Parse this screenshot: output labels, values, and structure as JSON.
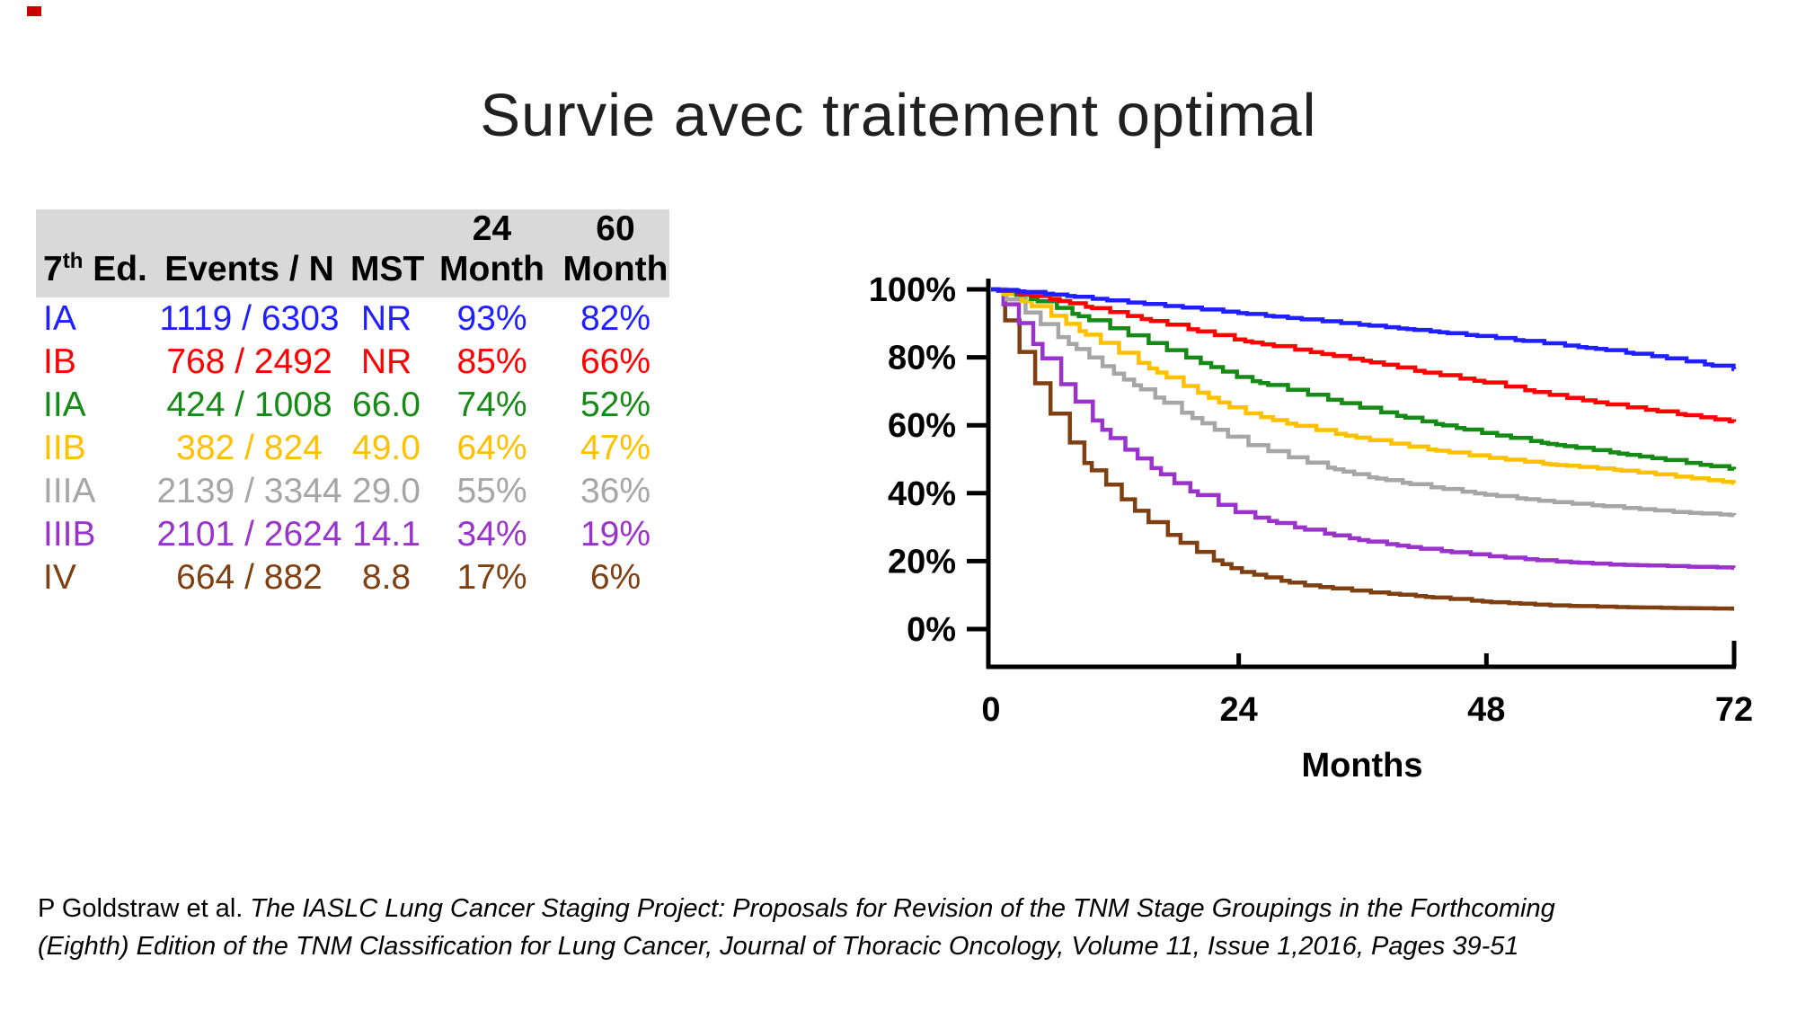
{
  "slide": {
    "title": "Survie avec traitement optimal"
  },
  "table": {
    "header_bg": "#d9d9d9",
    "header": {
      "col1": {
        "pre": "7",
        "sup": "th",
        "post": " Ed."
      },
      "col2": "Events / N",
      "col3": "MST",
      "col4_top": "24",
      "col4_bottom": "Month",
      "col5_top": "60",
      "col5_bottom": "Month"
    },
    "rows": [
      {
        "stage": "IA",
        "events_n": "1119 / 6303",
        "mst": "NR",
        "m24": "93%",
        "m60": "82%",
        "color": "#1f1fff"
      },
      {
        "stage": "IB",
        "events_n": "768 / 2492",
        "mst": "NR",
        "m24": "85%",
        "m60": "66%",
        "color": "#ff0000"
      },
      {
        "stage": "IIA",
        "events_n": "424 / 1008",
        "mst": "66.0",
        "m24": "74%",
        "m60": "52%",
        "color": "#168a16"
      },
      {
        "stage": "IIB",
        "events_n": "382 / 824",
        "mst": "49.0",
        "m24": "64%",
        "m60": "47%",
        "color": "#ffc000"
      },
      {
        "stage": "IIIA",
        "events_n": "2139 / 3344",
        "mst": "29.0",
        "m24": "55%",
        "m60": "36%",
        "color": "#a6a6a6"
      },
      {
        "stage": "IIIB",
        "events_n": "2101 / 2624",
        "mst": "14.1",
        "m24": "34%",
        "m60": "19%",
        "color": "#9933cc"
      },
      {
        "stage": "IV",
        "events_n": "664 / 882",
        "mst": "8.8",
        "m24": "17%",
        "m60": "6%",
        "color": "#7f3f10"
      }
    ]
  },
  "chart_data": {
    "type": "line",
    "subtype": "kaplan-meier-step-curves",
    "title": "",
    "xlabel": "Months",
    "ylabel": "",
    "xlim": [
      0,
      72
    ],
    "ylim": [
      0,
      100
    ],
    "x_ticks": [
      0,
      24,
      48,
      72
    ],
    "y_tick_labels": [
      "100%",
      "80%",
      "60%",
      "40%",
      "20%",
      "0%"
    ],
    "grid": false,
    "legend_position": "none (series colors match table row colors)",
    "series": [
      {
        "name": "IA",
        "color": "#1f1fff",
        "x": [
          0,
          3,
          6,
          12,
          18,
          24,
          30,
          36,
          42,
          48,
          54,
          60,
          66,
          72
        ],
        "y": [
          100,
          99.3,
          98.5,
          96.5,
          94.8,
          93,
          91.2,
          89.5,
          87.8,
          86,
          84,
          82,
          79.5,
          76.5
        ]
      },
      {
        "name": "IB",
        "color": "#ff0000",
        "x": [
          0,
          3,
          6,
          12,
          18,
          24,
          30,
          36,
          42,
          48,
          54,
          60,
          66,
          72
        ],
        "y": [
          100,
          98.5,
          97,
          93,
          89,
          85,
          82,
          79,
          75.5,
          72.5,
          69,
          66,
          63.5,
          61
        ]
      },
      {
        "name": "IIA",
        "color": "#168a16",
        "x": [
          0,
          3,
          6,
          12,
          18,
          24,
          30,
          36,
          42,
          48,
          54,
          60,
          66,
          72
        ],
        "y": [
          100,
          98,
          95,
          88,
          81,
          74,
          69.5,
          65,
          61,
          57.5,
          54.5,
          52,
          49.5,
          47
        ]
      },
      {
        "name": "IIB",
        "color": "#ffc000",
        "x": [
          0,
          3,
          6,
          12,
          18,
          24,
          30,
          36,
          42,
          48,
          54,
          60,
          66,
          72
        ],
        "y": [
          100,
          96.5,
          92,
          82,
          72.5,
          64,
          59.5,
          56,
          53,
          50.5,
          48.5,
          47,
          45,
          43
        ]
      },
      {
        "name": "IIIA",
        "color": "#a6a6a6",
        "x": [
          0,
          3,
          6,
          12,
          18,
          24,
          30,
          36,
          42,
          48,
          54,
          60,
          66,
          72
        ],
        "y": [
          100,
          94,
          87,
          75,
          64.5,
          55,
          49.5,
          45,
          42,
          39.5,
          37.5,
          36,
          34.5,
          33.5
        ]
      },
      {
        "name": "IIIB",
        "color": "#9933cc",
        "x": [
          0,
          3,
          6,
          9,
          12,
          15,
          18,
          21,
          24,
          30,
          36,
          42,
          48,
          54,
          60,
          66,
          72
        ],
        "y": [
          100,
          89,
          75,
          64,
          55,
          48.5,
          42.5,
          38,
          34,
          29.5,
          26,
          23.5,
          21.5,
          20,
          19,
          18.5,
          18
        ]
      },
      {
        "name": "IV",
        "color": "#7f3f10",
        "x": [
          0,
          3,
          6,
          9,
          12,
          15,
          18,
          21,
          24,
          30,
          36,
          42,
          48,
          54,
          60,
          66,
          72
        ],
        "y": [
          100,
          80,
          62,
          49,
          40,
          32,
          26,
          21,
          17,
          13,
          11,
          9.5,
          8,
          7,
          6.5,
          6.2,
          6
        ]
      }
    ]
  },
  "citation": {
    "line1": {
      "normal": "P Goldstraw et al. ",
      "italic": "The IASLC Lung Cancer Staging Project: Proposals for Revision of the TNM Stage Groupings in the Forthcoming"
    },
    "line2": {
      "italic": "(Eighth) Edition of the TNM Classification for Lung Cancer, Journal of Thoracic Oncology, Volume 11, Issue 1,2016, Pages 39-51"
    }
  }
}
